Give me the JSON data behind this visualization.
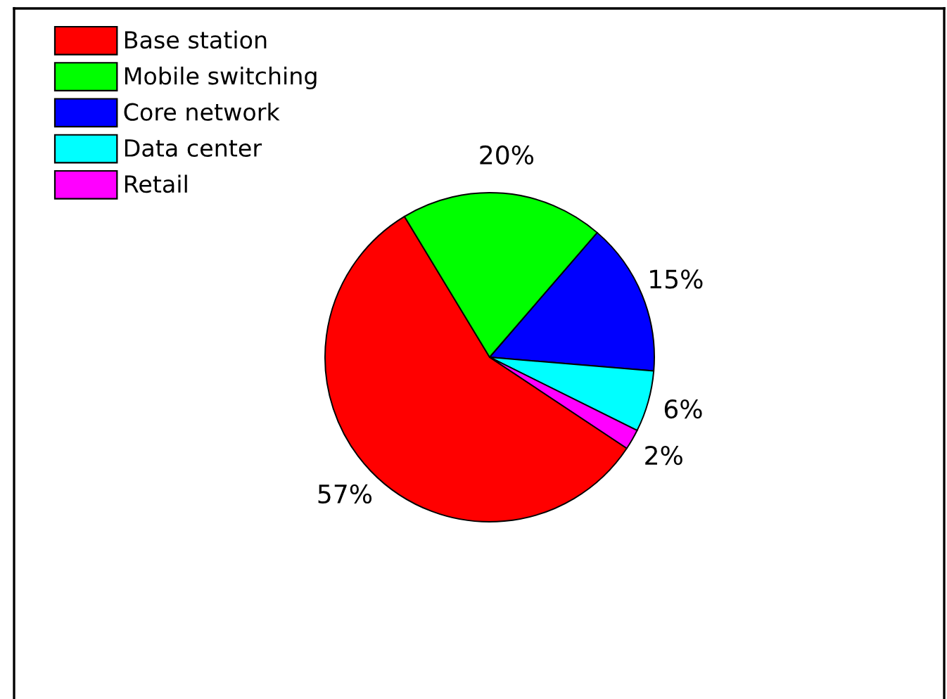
{
  "chart_data": {
    "type": "pie",
    "categories": [
      "Base station",
      "Mobile switching",
      "Core network",
      "Data center",
      "Retail"
    ],
    "values": [
      57,
      20,
      15,
      6,
      2
    ],
    "colors": [
      "#ff0000",
      "#00ff00",
      "#0000ff",
      "#00ffff",
      "#ff00ff"
    ],
    "value_labels": [
      "57%",
      "20%",
      "15%",
      "6%",
      "2%"
    ],
    "legend": "top left"
  }
}
